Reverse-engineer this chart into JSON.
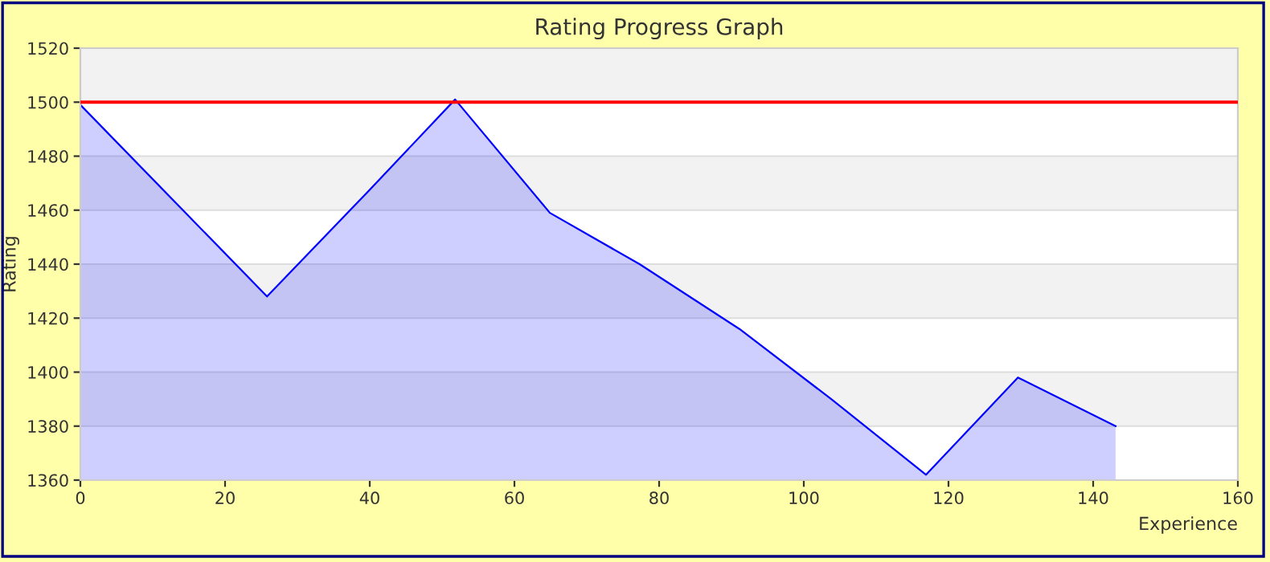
{
  "chart_data": {
    "type": "area",
    "title": "Rating Progress Graph",
    "xlabel": "Experience",
    "ylabel": "Rating",
    "series": [
      {
        "color": "#0000ff",
        "x": [
          0,
          25.8,
          39.8,
          51.8,
          64.9,
          77.3,
          91.1,
          103.8,
          116.9,
          129.6,
          143.1
        ],
        "values": [
          1499,
          1428,
          1467,
          1501,
          1459,
          1440,
          1416,
          1390,
          1362,
          1398,
          1380
        ]
      }
    ],
    "xlim": [
      0,
      160
    ],
    "xticks": [
      0,
      20,
      40,
      60,
      80,
      100,
      120,
      140,
      160
    ],
    "ylim": [
      1360,
      1520
    ],
    "yticks": [
      1360,
      1380,
      1400,
      1420,
      1440,
      1460,
      1480,
      1500,
      1520
    ],
    "ref_lines": [
      {
        "axis": "y",
        "value": 1500,
        "color": "#ff0000"
      }
    ],
    "grid": "y"
  }
}
